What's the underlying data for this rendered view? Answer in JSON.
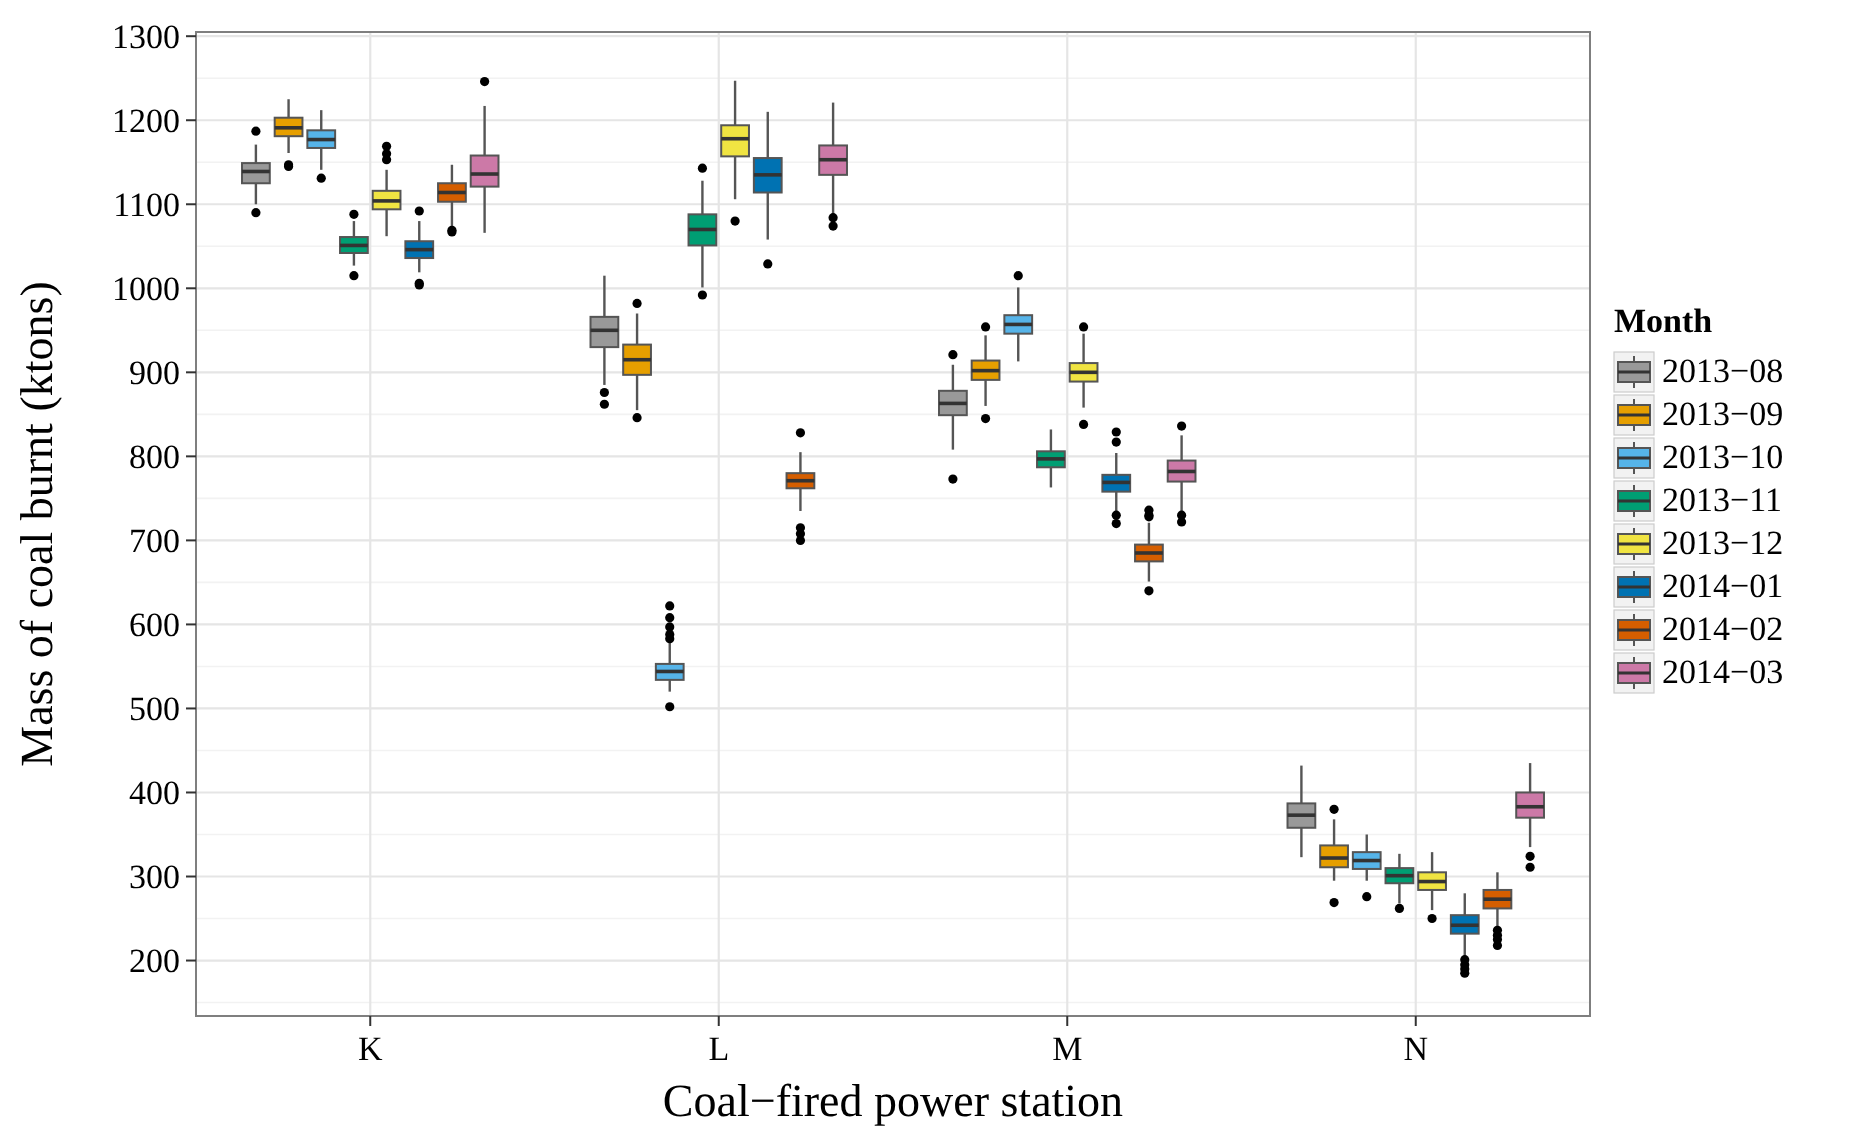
{
  "chart_data": {
    "type": "box",
    "xlabel": "Coal−fired power station",
    "ylabel": "Mass of coal burnt (ktons)",
    "legend_title": "Month",
    "legend": "right",
    "grid": true,
    "categories": [
      "K",
      "L",
      "M",
      "N"
    ],
    "ylim": [
      134,
      1305
    ],
    "yticks": [
      200,
      300,
      400,
      500,
      600,
      700,
      800,
      900,
      1000,
      1100,
      1200,
      1300
    ],
    "series": [
      {
        "name": "2013−08",
        "color": "#999999",
        "boxes": [
          {
            "low": 1100,
            "q1": 1125,
            "median": 1139,
            "q3": 1149,
            "high": 1171,
            "outliers": [
              1090,
              1187
            ]
          },
          {
            "low": 885,
            "q1": 930,
            "median": 950,
            "q3": 966,
            "high": 1015,
            "outliers": [
              876,
              862
            ]
          },
          {
            "low": 808,
            "q1": 849,
            "median": 863,
            "q3": 878,
            "high": 909,
            "outliers": [
              773,
              921
            ]
          },
          {
            "low": 323,
            "q1": 358,
            "median": 373,
            "q3": 387,
            "high": 432
          }
        ]
      },
      {
        "name": "2013−09",
        "color": "#e69f00",
        "boxes": [
          {
            "low": 1161,
            "q1": 1181,
            "median": 1191,
            "q3": 1203,
            "high": 1225,
            "outliers": [
              1147,
              1145
            ]
          },
          {
            "low": 855,
            "q1": 897,
            "median": 915,
            "q3": 933,
            "high": 970,
            "outliers": [
              982,
              846
            ]
          },
          {
            "low": 860,
            "q1": 891,
            "median": 902,
            "q3": 914,
            "high": 944,
            "outliers": [
              954,
              845
            ]
          },
          {
            "low": 295,
            "q1": 311,
            "median": 322,
            "q3": 337,
            "high": 368,
            "outliers": [
              380,
              269
            ]
          }
        ]
      },
      {
        "name": "2013−10",
        "color": "#56b4e9",
        "boxes": [
          {
            "low": 1141,
            "q1": 1167,
            "median": 1177,
            "q3": 1188,
            "high": 1212,
            "outliers": [
              1131
            ]
          },
          {
            "low": 520,
            "q1": 534,
            "median": 544,
            "q3": 553,
            "high": 579,
            "outliers": [
              583,
              588,
              597,
              608,
              622,
              502
            ]
          },
          {
            "low": 913,
            "q1": 946,
            "median": 957,
            "q3": 968,
            "high": 1001,
            "outliers": [
              1015
            ]
          },
          {
            "low": 295,
            "q1": 309,
            "median": 319,
            "q3": 329,
            "high": 350,
            "outliers": [
              276
            ]
          }
        ]
      },
      {
        "name": "2013−11",
        "color": "#009e73",
        "boxes": [
          {
            "low": 1027,
            "q1": 1042,
            "median": 1051,
            "q3": 1061,
            "high": 1080,
            "outliers": [
              1088,
              1015
            ]
          },
          {
            "low": 1001,
            "q1": 1051,
            "median": 1070,
            "q3": 1088,
            "high": 1128,
            "outliers": [
              1143,
              992
            ]
          },
          {
            "low": 763,
            "q1": 787,
            "median": 797,
            "q3": 806,
            "high": 832
          },
          {
            "low": 268,
            "q1": 292,
            "median": 301,
            "q3": 310,
            "high": 327,
            "outliers": [
              262
            ]
          }
        ]
      },
      {
        "name": "2013−12",
        "color": "#f0e442",
        "boxes": [
          {
            "low": 1062,
            "q1": 1094,
            "median": 1104,
            "q3": 1116,
            "high": 1141,
            "outliers": [
              1153,
              1160,
              1169
            ]
          },
          {
            "low": 1106,
            "q1": 1157,
            "median": 1178,
            "q3": 1194,
            "high": 1247,
            "outliers": [
              1080
            ]
          },
          {
            "low": 858,
            "q1": 889,
            "median": 900,
            "q3": 911,
            "high": 946,
            "outliers": [
              954,
              838
            ]
          },
          {
            "low": 260,
            "q1": 284,
            "median": 294,
            "q3": 305,
            "high": 329,
            "outliers": [
              250
            ]
          }
        ]
      },
      {
        "name": "2014−01",
        "color": "#0072b2",
        "boxes": [
          {
            "low": 1019,
            "q1": 1036,
            "median": 1046,
            "q3": 1056,
            "high": 1080,
            "outliers": [
              1092,
              1006,
              1004
            ]
          },
          {
            "low": 1058,
            "q1": 1114,
            "median": 1135,
            "q3": 1155,
            "high": 1210,
            "outliers": [
              1029
            ]
          },
          {
            "low": 734,
            "q1": 758,
            "median": 769,
            "q3": 778,
            "high": 804,
            "outliers": [
              817,
              829,
              730,
              720
            ]
          },
          {
            "low": 205,
            "q1": 232,
            "median": 242,
            "q3": 254,
            "high": 280,
            "outliers": [
              201,
              195,
              190,
              185
            ]
          }
        ]
      },
      {
        "name": "2014−02",
        "color": "#d55e00",
        "boxes": [
          {
            "low": 1074,
            "q1": 1103,
            "median": 1114,
            "q3": 1125,
            "high": 1147,
            "outliers": [
              1069,
              1067
            ]
          },
          {
            "low": 735,
            "q1": 762,
            "median": 771,
            "q3": 780,
            "high": 805,
            "outliers": [
              828,
              715,
              708,
              700
            ]
          },
          {
            "low": 651,
            "q1": 675,
            "median": 685,
            "q3": 695,
            "high": 721,
            "outliers": [
              728,
              730,
              736,
              640
            ]
          },
          {
            "low": 240,
            "q1": 262,
            "median": 273,
            "q3": 284,
            "high": 305,
            "outliers": [
              236,
              230,
              225,
              218
            ]
          }
        ]
      },
      {
        "name": "2014−03",
        "color": "#cc79a7",
        "boxes": [
          {
            "low": 1066,
            "q1": 1121,
            "median": 1136,
            "q3": 1158,
            "high": 1217,
            "outliers": [
              1246
            ]
          },
          {
            "low": 1088,
            "q1": 1135,
            "median": 1153,
            "q3": 1170,
            "high": 1221,
            "outliers": [
              1084,
              1074
            ]
          },
          {
            "low": 733,
            "q1": 770,
            "median": 782,
            "q3": 795,
            "high": 825,
            "outliers": [
              836,
              730,
              722
            ]
          },
          {
            "low": 335,
            "q1": 370,
            "median": 383,
            "q3": 400,
            "high": 435,
            "outliers": [
              324,
              311
            ]
          }
        ]
      }
    ]
  }
}
